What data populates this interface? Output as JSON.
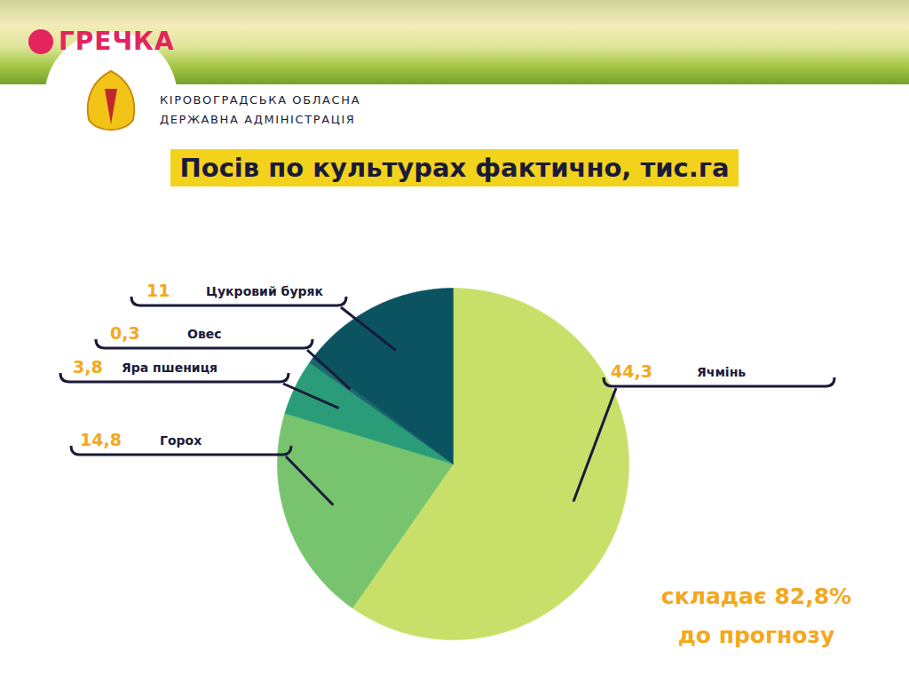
{
  "header": {
    "logo": "ГРЕЧКА",
    "organization": [
      "КІРОВОГРАДСЬКА ОБЛАСНА",
      "ДЕРЖАВНА АДМІНІСТРАЦІЯ"
    ]
  },
  "chart_data": {
    "type": "pie",
    "title": "Посів по культурах фактично, тис.га",
    "categories": [
      "Ячмінь",
      "Горох",
      "Яра пшениця",
      "Овес",
      "Цукровий буряк"
    ],
    "values": [
      44.3,
      14.8,
      3.8,
      0.3,
      11
    ],
    "value_labels": [
      "44,3",
      "14,8",
      "3,8",
      "0,3",
      "11"
    ],
    "colors": [
      "#c8e06a",
      "#78c46e",
      "#2a9d78",
      "#1b6b6e",
      "#0c5361"
    ],
    "data_labels": true,
    "annotations": [
      "складає 82,8%",
      "до прогнозу"
    ]
  }
}
